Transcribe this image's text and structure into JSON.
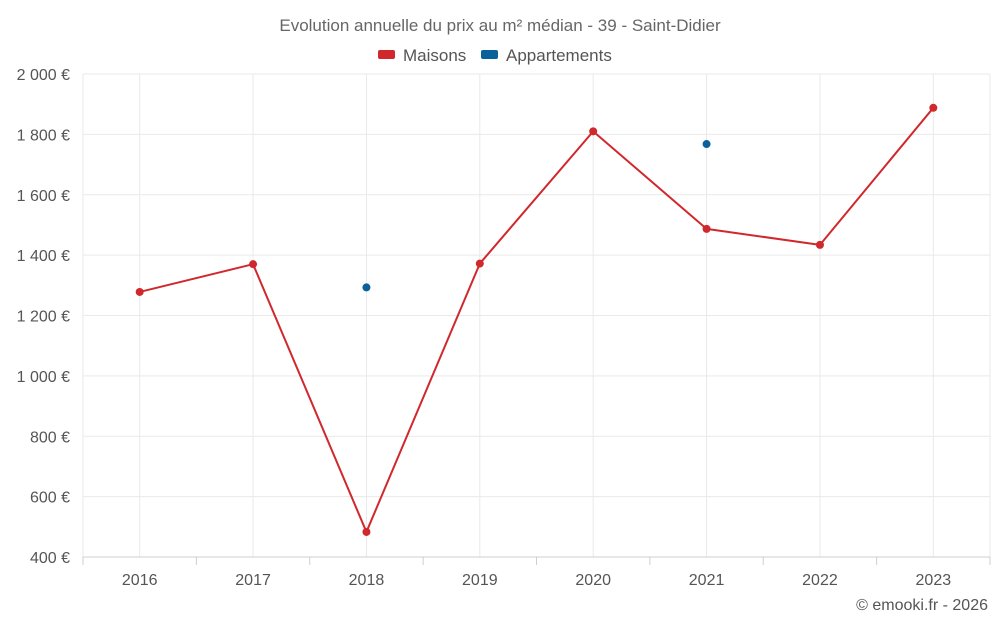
{
  "chart_data": {
    "type": "line",
    "title": "Evolution annuelle du prix au m² médian - 39 - Saint-Didier",
    "categories": [
      "2016",
      "2017",
      "2018",
      "2019",
      "2020",
      "2021",
      "2022",
      "2023"
    ],
    "ylim": [
      400,
      2000
    ],
    "yticks": [
      400,
      600,
      800,
      1000,
      1200,
      1400,
      1600,
      1800,
      2000
    ],
    "ytick_labels": [
      "400 €",
      "600 €",
      "800 €",
      "1 000 €",
      "1 200 €",
      "1 400 €",
      "1 600 €",
      "1 800 €",
      "2 000 €"
    ],
    "legend_position": "top-center",
    "grid": true,
    "series": [
      {
        "name": "Maisons",
        "color": "#d0282c",
        "values": [
          1278,
          1370,
          483,
          1372,
          1810,
          1487,
          1434,
          1888
        ]
      },
      {
        "name": "Appartements",
        "color": "#0a6199",
        "values": [
          null,
          null,
          1293,
          null,
          null,
          1768,
          null,
          null
        ]
      }
    ]
  },
  "footer": {
    "copyright": "© emooki.fr - 2026"
  }
}
